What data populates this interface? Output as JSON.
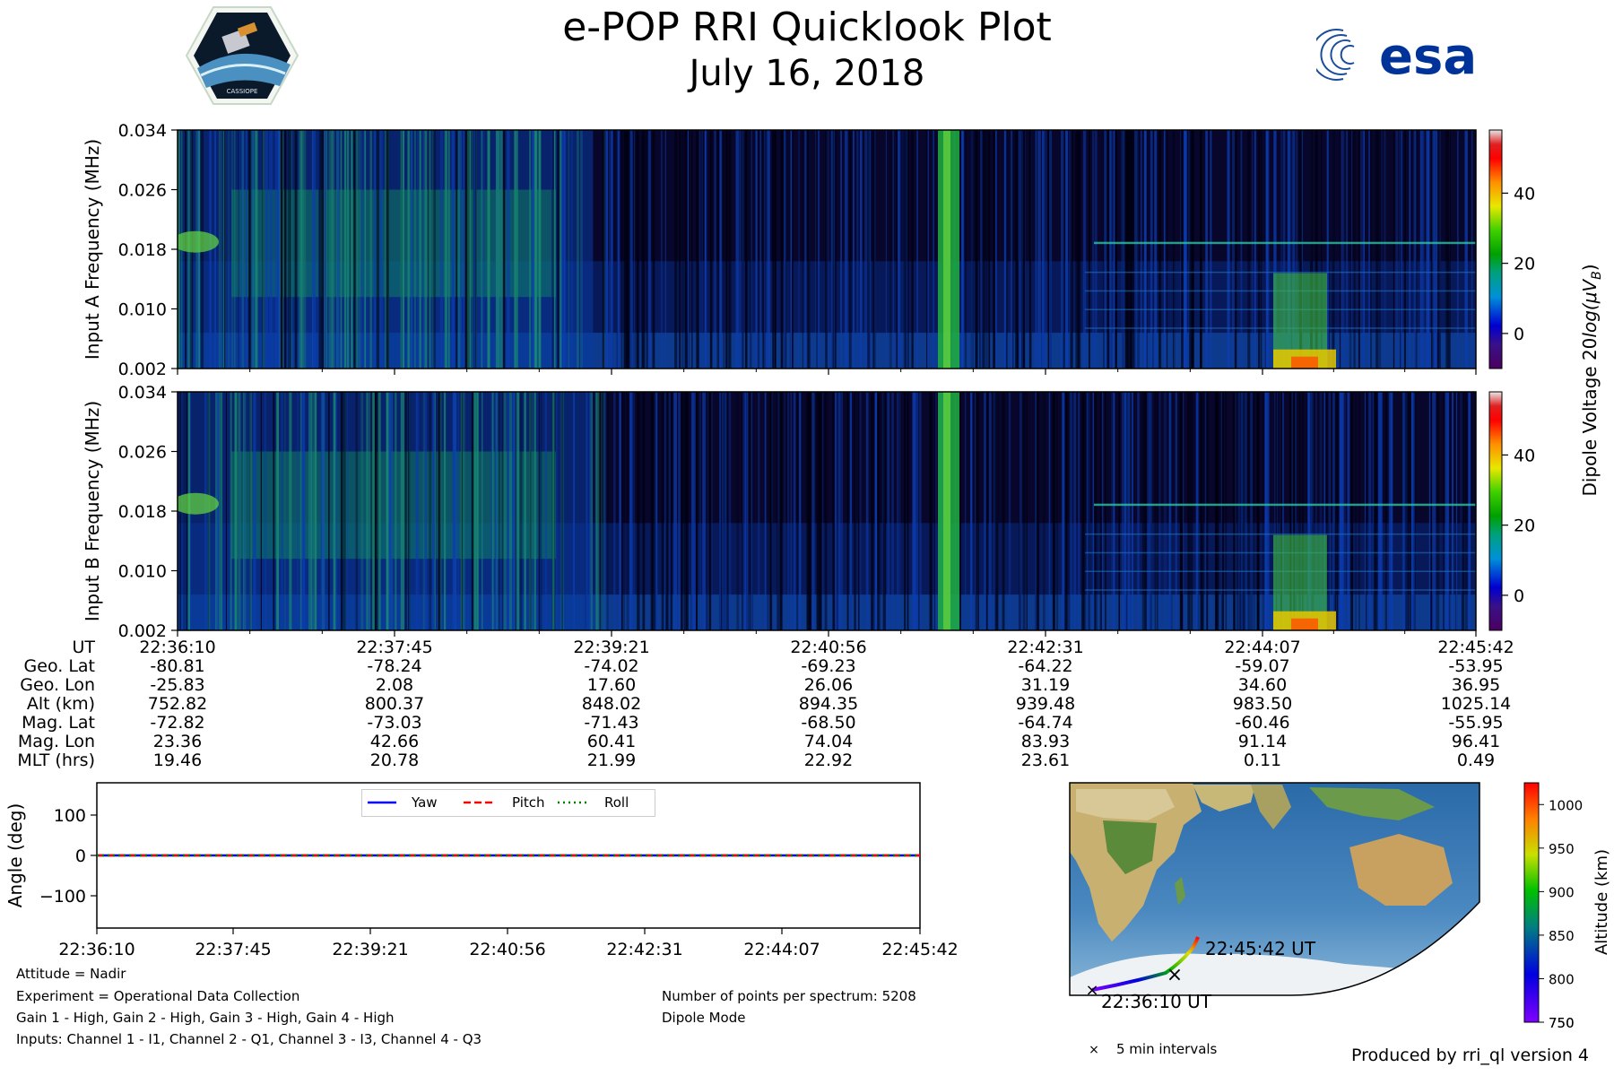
{
  "header": {
    "title": "e-POP RRI Quicklook Plot",
    "date": "July 16, 2018",
    "logo_left_text": "CASSIOPE",
    "logo_right_text": "esa"
  },
  "colors": {
    "yaw": "#0000ff",
    "pitch": "#ff0000",
    "roll": "#008000"
  },
  "chart_data": [
    {
      "type": "heatmap",
      "name": "Input A spectrogram",
      "ylabel": "Input A Frequency (MHz)",
      "yticks": [
        "0.002",
        "0.010",
        "0.018",
        "0.026",
        "0.034"
      ],
      "ylim": [
        0.002,
        0.034
      ],
      "x_range": [
        "22:36:10",
        "22:45:42"
      ],
      "colorbar": {
        "label": "Dipole Voltage 20log(μV_B)",
        "label_main": "Dipole Voltage 20",
        "label_log": "log(",
        "label_mu": "μV",
        "label_sub": "B",
        "label_close": ")",
        "ticks": [
          "0",
          "20",
          "40"
        ],
        "range": [
          -10,
          58
        ]
      }
    },
    {
      "type": "heatmap",
      "name": "Input B spectrogram",
      "ylabel": "Input B Frequency (MHz)",
      "yticks": [
        "0.002",
        "0.010",
        "0.018",
        "0.026",
        "0.034"
      ],
      "ylim": [
        0.002,
        0.034
      ],
      "x_range": [
        "22:36:10",
        "22:45:42"
      ],
      "colorbar": {
        "ticks": [
          "0",
          "20",
          "40"
        ],
        "range": [
          -10,
          58
        ]
      }
    },
    {
      "type": "line",
      "name": "Attitude",
      "ylabel": "Angle (deg)",
      "yticks": [
        "−100",
        "0",
        "100"
      ],
      "ylim": [
        -180,
        180
      ],
      "x": [
        "22:36:10",
        "22:37:45",
        "22:39:21",
        "22:40:56",
        "22:42:31",
        "22:44:07",
        "22:45:42"
      ],
      "series": [
        {
          "name": "Yaw",
          "values": [
            0,
            0,
            0,
            0,
            0,
            0,
            0
          ]
        },
        {
          "name": "Pitch",
          "values": [
            0,
            0,
            0,
            0,
            0,
            0,
            0
          ]
        },
        {
          "name": "Roll",
          "values": [
            0,
            0,
            0,
            0,
            0,
            0,
            0
          ]
        }
      ],
      "legend": [
        "Yaw",
        "Pitch",
        "Roll"
      ]
    },
    {
      "type": "scatter",
      "name": "Orbit map",
      "start_label": "22:36:10 UT",
      "end_label": "22:45:42 UT",
      "marker_note": "5 min intervals",
      "colorbar": {
        "label": "Altitude (km)",
        "ticks": [
          "750",
          "800",
          "850",
          "900",
          "950",
          "1000"
        ],
        "range": [
          750,
          1025
        ]
      }
    }
  ],
  "ephemeris": {
    "labels": [
      "UT",
      "Geo. Lat",
      "Geo. Lon",
      "Alt (km)",
      "Mag. Lat",
      "Mag. Lon",
      "MLT (hrs)"
    ],
    "columns": [
      [
        "22:36:10",
        "-80.81",
        "-25.83",
        "752.82",
        "-72.82",
        "23.36",
        "19.46"
      ],
      [
        "22:37:45",
        "-78.24",
        "2.08",
        "800.37",
        "-73.03",
        "42.66",
        "20.78"
      ],
      [
        "22:39:21",
        "-74.02",
        "17.60",
        "848.02",
        "-71.43",
        "60.41",
        "21.99"
      ],
      [
        "22:40:56",
        "-69.23",
        "26.06",
        "894.35",
        "-68.50",
        "74.04",
        "22.92"
      ],
      [
        "22:42:31",
        "-64.22",
        "31.19",
        "939.48",
        "-64.74",
        "83.93",
        "23.61"
      ],
      [
        "22:44:07",
        "-59.07",
        "34.60",
        "983.50",
        "-60.46",
        "91.14",
        "0.11"
      ],
      [
        "22:45:42",
        "-53.95",
        "36.95",
        "1025.14",
        "-55.95",
        "96.41",
        "0.49"
      ]
    ]
  },
  "footer": {
    "attitude": "Attitude = Nadir",
    "experiment": "Experiment = Operational Data Collection",
    "gain": "Gain 1 - High, Gain 2 - High, Gain 3 - High, Gain 4 - High",
    "inputs": "Inputs: Channel 1 - I1, Channel 2 - Q1, Channel 3 - I3, Channel 4 - Q3",
    "points": "Number of points per spectrum: 5208",
    "mode": "Dipole Mode",
    "producer": "Produced by rri_ql version 4"
  }
}
